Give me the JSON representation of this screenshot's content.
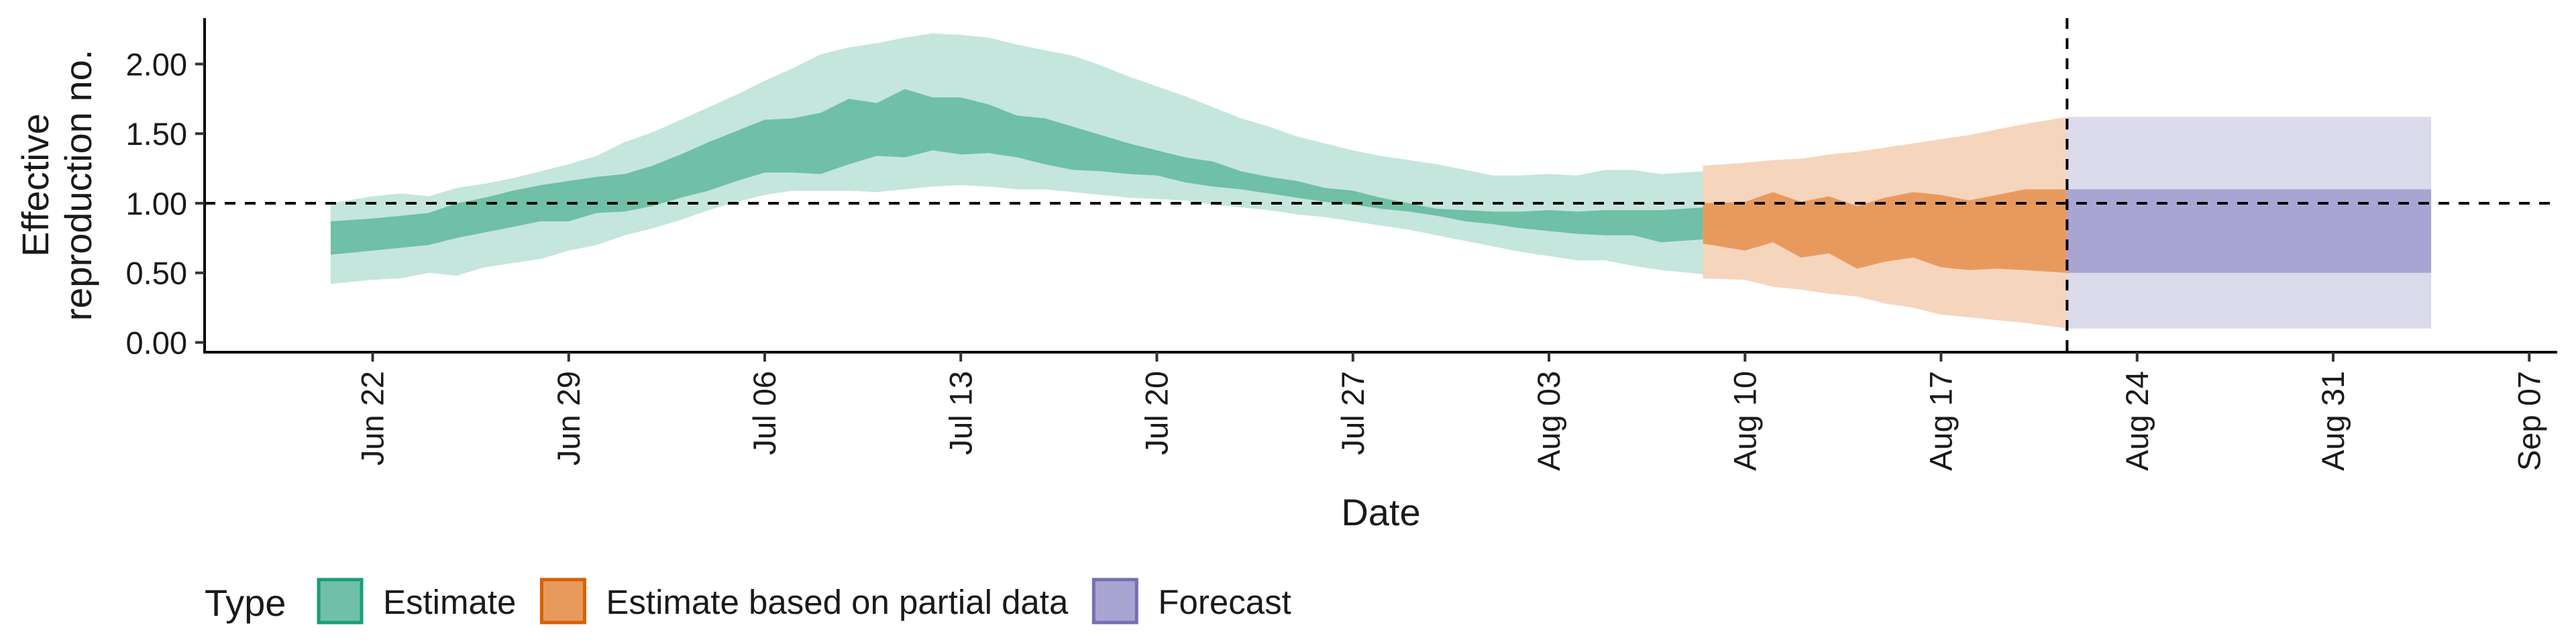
{
  "chart_data": {
    "type": "area",
    "xlabel": "Date",
    "ylabel": "Effective\nreproduction no.",
    "x_start": "2020-06-16",
    "x_end": "2020-09-08",
    "xlim": [
      "2020-06-16",
      "2020-09-08"
    ],
    "ylim": [
      -0.07,
      2.33
    ],
    "y_ticks": [
      0.0,
      0.5,
      1.0,
      1.5,
      2.0
    ],
    "y_tick_labels": [
      "0.00",
      "0.50",
      "1.00",
      "1.50",
      "2.00"
    ],
    "x_ticks": [
      "2020-06-22",
      "2020-06-29",
      "2020-07-06",
      "2020-07-13",
      "2020-07-20",
      "2020-07-27",
      "2020-08-03",
      "2020-08-10",
      "2020-08-17",
      "2020-08-24",
      "2020-08-31",
      "2020-09-07"
    ],
    "x_tick_labels": [
      "Jun 22",
      "Jun 29",
      "Jul 06",
      "Jul 13",
      "Jul 20",
      "Jul 27",
      "Aug 03",
      "Aug 10",
      "Aug 17",
      "Aug 24",
      "Aug 31",
      "Sep 07"
    ],
    "reference_line_y": 1.0,
    "reference_line_x": "2020-08-21",
    "grid": false,
    "legend": {
      "position": "bottom-left",
      "title": "Type",
      "items": [
        {
          "label": "Estimate",
          "color": "#1b9e77"
        },
        {
          "label": "Estimate based on partial data",
          "color": "#d95f02"
        },
        {
          "label": "Forecast",
          "color": "#7570b3"
        }
      ]
    },
    "series": [
      {
        "name": "Estimate",
        "color": "#1b9e77",
        "fill_outer": "#c5e6dc",
        "fill_inner": "#6fc0a6",
        "x": [
          "2020-06-21",
          "2020-06-22",
          "2020-06-23",
          "2020-06-24",
          "2020-06-25",
          "2020-06-26",
          "2020-06-27",
          "2020-06-28",
          "2020-06-29",
          "2020-06-30",
          "2020-07-01",
          "2020-07-02",
          "2020-07-03",
          "2020-07-04",
          "2020-07-05",
          "2020-07-06",
          "2020-07-07",
          "2020-07-08",
          "2020-07-09",
          "2020-07-10",
          "2020-07-11",
          "2020-07-12",
          "2020-07-13",
          "2020-07-14",
          "2020-07-15",
          "2020-07-16",
          "2020-07-17",
          "2020-07-18",
          "2020-07-19",
          "2020-07-20",
          "2020-07-21",
          "2020-07-22",
          "2020-07-23",
          "2020-07-24",
          "2020-07-25",
          "2020-07-26",
          "2020-07-27",
          "2020-07-28",
          "2020-07-29",
          "2020-07-30",
          "2020-07-31",
          "2020-08-01",
          "2020-08-02",
          "2020-08-03",
          "2020-08-04",
          "2020-08-05",
          "2020-08-06",
          "2020-08-07",
          "2020-08-08"
        ],
        "lower_90": [
          0.42,
          0.45,
          0.46,
          0.5,
          0.48,
          0.54,
          0.57,
          0.6,
          0.66,
          0.7,
          0.77,
          0.82,
          0.88,
          0.95,
          1.01,
          1.06,
          1.09,
          1.09,
          1.09,
          1.08,
          1.1,
          1.12,
          1.13,
          1.12,
          1.1,
          1.1,
          1.08,
          1.06,
          1.04,
          1.03,
          1.02,
          0.99,
          0.97,
          0.95,
          0.92,
          0.9,
          0.87,
          0.84,
          0.81,
          0.77,
          0.73,
          0.69,
          0.65,
          0.62,
          0.59,
          0.59,
          0.55,
          0.52,
          0.49
        ],
        "upper_90": [
          1.0,
          1.05,
          1.07,
          1.05,
          1.11,
          1.14,
          1.18,
          1.23,
          1.28,
          1.34,
          1.44,
          1.51,
          1.6,
          1.69,
          1.78,
          1.88,
          1.97,
          2.07,
          2.12,
          2.15,
          2.19,
          2.22,
          2.21,
          2.19,
          2.14,
          2.1,
          2.06,
          1.99,
          1.91,
          1.84,
          1.77,
          1.69,
          1.61,
          1.55,
          1.48,
          1.43,
          1.38,
          1.34,
          1.31,
          1.28,
          1.24,
          1.2,
          1.2,
          1.21,
          1.2,
          1.24,
          1.24,
          1.21,
          1.23
        ],
        "lower_50": [
          0.63,
          0.66,
          0.68,
          0.7,
          0.75,
          0.79,
          0.83,
          0.87,
          0.87,
          0.93,
          0.94,
          0.98,
          1.04,
          1.09,
          1.16,
          1.22,
          1.22,
          1.21,
          1.28,
          1.34,
          1.33,
          1.38,
          1.35,
          1.36,
          1.33,
          1.28,
          1.24,
          1.23,
          1.21,
          1.2,
          1.15,
          1.12,
          1.1,
          1.07,
          1.04,
          1.01,
          0.99,
          0.96,
          0.94,
          0.91,
          0.87,
          0.85,
          0.82,
          0.8,
          0.78,
          0.77,
          0.77,
          0.72,
          0.74
        ],
        "upper_50": [
          0.87,
          0.89,
          0.91,
          0.93,
          1.0,
          1.04,
          1.09,
          1.13,
          1.16,
          1.19,
          1.21,
          1.27,
          1.35,
          1.44,
          1.52,
          1.6,
          1.61,
          1.65,
          1.75,
          1.72,
          1.82,
          1.76,
          1.76,
          1.71,
          1.63,
          1.61,
          1.55,
          1.49,
          1.43,
          1.38,
          1.33,
          1.3,
          1.23,
          1.19,
          1.16,
          1.11,
          1.09,
          1.04,
          1.0,
          0.96,
          0.95,
          0.94,
          0.94,
          0.95,
          0.94,
          0.95,
          0.95,
          0.95,
          0.97
        ]
      },
      {
        "name": "Estimate based on partial data",
        "color": "#d95f02",
        "fill_outer": "#f6d5bd",
        "fill_inner": "#e89a5e",
        "x": [
          "2020-08-09",
          "2020-08-10",
          "2020-08-11",
          "2020-08-12",
          "2020-08-13",
          "2020-08-14",
          "2020-08-15",
          "2020-08-16",
          "2020-08-17",
          "2020-08-18",
          "2020-08-19",
          "2020-08-20",
          "2020-08-21"
        ],
        "lower_90": [
          0.46,
          0.45,
          0.4,
          0.38,
          0.35,
          0.33,
          0.28,
          0.25,
          0.2,
          0.18,
          0.16,
          0.14,
          0.1
        ],
        "upper_90": [
          1.27,
          1.29,
          1.31,
          1.32,
          1.35,
          1.37,
          1.4,
          1.43,
          1.46,
          1.49,
          1.53,
          1.57,
          1.62
        ],
        "lower_50": [
          0.71,
          0.66,
          0.72,
          0.61,
          0.64,
          0.53,
          0.58,
          0.61,
          0.54,
          0.52,
          0.53,
          0.52,
          0.5
        ],
        "upper_50": [
          1.0,
          1.01,
          1.08,
          1.01,
          1.05,
          0.98,
          1.04,
          1.08,
          1.06,
          1.02,
          1.06,
          1.1,
          1.1
        ]
      },
      {
        "name": "Forecast",
        "color": "#7570b3",
        "fill_outer": "#dcdbec",
        "fill_inner": "#a8a5d3",
        "x": [
          "2020-08-22",
          "2020-09-03"
        ],
        "lower_90": [
          0.1,
          0.1
        ],
        "upper_90": [
          1.62,
          1.62
        ],
        "lower_50": [
          0.5,
          0.5
        ],
        "upper_50": [
          1.1,
          1.1
        ]
      }
    ]
  }
}
